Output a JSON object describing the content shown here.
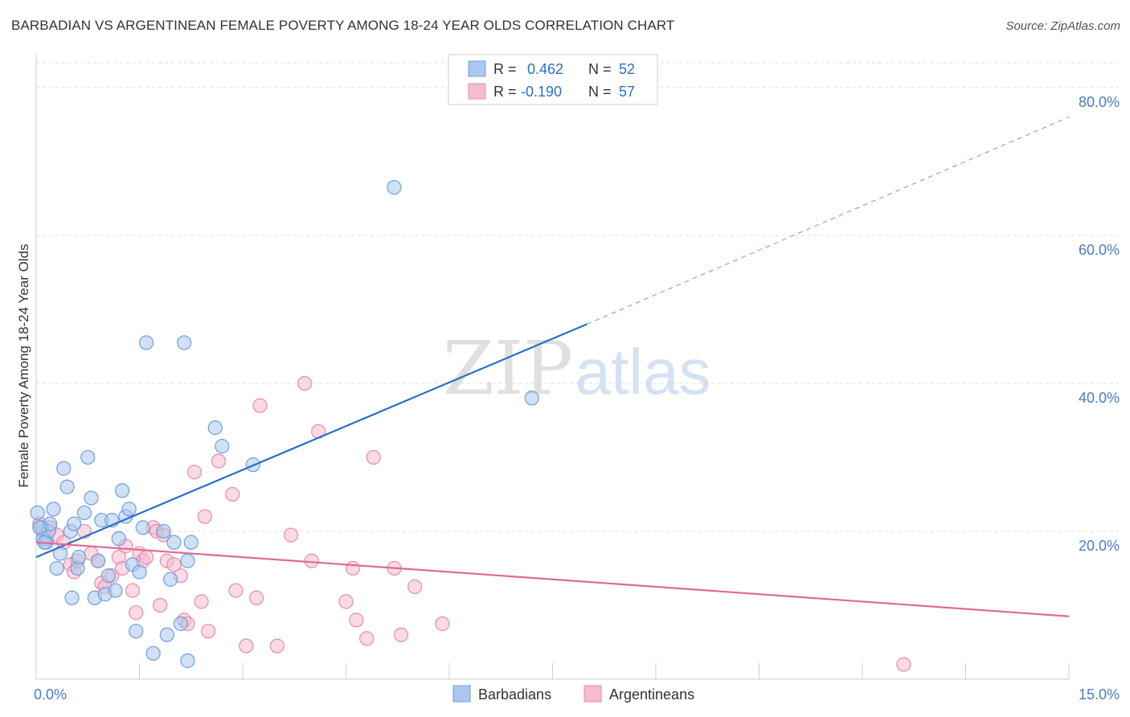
{
  "title": "BARBADIAN VS ARGENTINEAN FEMALE POVERTY AMONG 18-24 YEAR OLDS CORRELATION CHART",
  "source": "Source: ZipAtlas.com",
  "watermark": {
    "zip": "ZIP",
    "atlas": "atlas"
  },
  "colors": {
    "barbadians_fill": "#aac8ef",
    "barbadians_stroke": "#6f9fd8",
    "barbadians_line": "#2870c8",
    "argentineans_fill": "#f6bcd0",
    "argentineans_stroke": "#e88aaa",
    "argentineans_line": "#e06994",
    "tick_text": "#4a7cc4",
    "grid": "#dddddd"
  },
  "legend": {
    "rows": [
      {
        "r_label": "R =",
        "r_value": "0.462",
        "n_label": "N =",
        "n_value": "52"
      },
      {
        "r_label": "R =",
        "r_value": "-0.190",
        "n_label": "N =",
        "n_value": "57"
      }
    ]
  },
  "chart_data": {
    "type": "scatter",
    "title": "BARBADIAN VS ARGENTINEAN FEMALE POVERTY AMONG 18-24 YEAR OLDS CORRELATION CHART",
    "xlabel": "",
    "ylabel": "Female Poverty Among 18-24 Year Olds",
    "xlim": [
      0,
      15
    ],
    "ylim": [
      0,
      84
    ],
    "x_tick_labels": [
      {
        "value": 0,
        "label": "0.0%"
      },
      {
        "value": 15,
        "label": "15.0%"
      }
    ],
    "y_tick_labels": [
      {
        "value": 20,
        "label": "20.0%"
      },
      {
        "value": 40,
        "label": "40.0%"
      },
      {
        "value": 60,
        "label": "60.0%"
      },
      {
        "value": 80,
        "label": "80.0%"
      }
    ],
    "grid": true,
    "legend_position": "bottom-center",
    "series": [
      {
        "name": "Barbadians",
        "points": [
          [
            0.02,
            22.5
          ],
          [
            0.08,
            20.5
          ],
          [
            0.1,
            19.0
          ],
          [
            0.15,
            18.5
          ],
          [
            0.18,
            20.0
          ],
          [
            0.2,
            21.0
          ],
          [
            0.25,
            23.0
          ],
          [
            0.3,
            15.0
          ],
          [
            0.35,
            17.0
          ],
          [
            0.4,
            28.5
          ],
          [
            0.45,
            26.0
          ],
          [
            0.5,
            20.0
          ],
          [
            0.52,
            11.0
          ],
          [
            0.6,
            15.0
          ],
          [
            0.62,
            16.5
          ],
          [
            0.7,
            22.5
          ],
          [
            0.75,
            30.0
          ],
          [
            0.8,
            24.5
          ],
          [
            0.85,
            11.0
          ],
          [
            0.9,
            16.0
          ],
          [
            0.95,
            21.5
          ],
          [
            1.0,
            11.5
          ],
          [
            1.05,
            14.0
          ],
          [
            1.1,
            21.5
          ],
          [
            1.15,
            12.0
          ],
          [
            1.2,
            19.0
          ],
          [
            1.25,
            25.5
          ],
          [
            1.3,
            22.0
          ],
          [
            1.35,
            23.0
          ],
          [
            1.4,
            15.5
          ],
          [
            1.45,
            6.5
          ],
          [
            1.5,
            14.5
          ],
          [
            1.55,
            20.5
          ],
          [
            1.6,
            45.5
          ],
          [
            1.7,
            3.5
          ],
          [
            1.85,
            20.0
          ],
          [
            1.9,
            6.0
          ],
          [
            1.95,
            13.5
          ],
          [
            2.0,
            18.5
          ],
          [
            2.1,
            7.5
          ],
          [
            2.15,
            45.5
          ],
          [
            2.2,
            16.0
          ],
          [
            2.25,
            18.5
          ],
          [
            2.2,
            2.5
          ],
          [
            2.6,
            34.0
          ],
          [
            2.7,
            31.5
          ],
          [
            3.15,
            29.0
          ],
          [
            5.2,
            66.5
          ],
          [
            7.2,
            38.0
          ],
          [
            0.05,
            20.5
          ],
          [
            0.12,
            18.5
          ],
          [
            0.55,
            21.0
          ]
        ]
      },
      {
        "name": "Argentineans",
        "points": [
          [
            0.05,
            21.0
          ],
          [
            0.1,
            20.0
          ],
          [
            0.15,
            19.0
          ],
          [
            0.2,
            20.5
          ],
          [
            0.3,
            19.5
          ],
          [
            0.4,
            18.5
          ],
          [
            0.5,
            15.5
          ],
          [
            0.55,
            14.5
          ],
          [
            0.6,
            16.0
          ],
          [
            0.7,
            20.0
          ],
          [
            0.8,
            17.0
          ],
          [
            0.9,
            16.0
          ],
          [
            0.95,
            13.0
          ],
          [
            1.0,
            12.5
          ],
          [
            1.1,
            14.0
          ],
          [
            1.2,
            16.5
          ],
          [
            1.25,
            15.0
          ],
          [
            1.3,
            18.0
          ],
          [
            1.4,
            12.0
          ],
          [
            1.45,
            9.0
          ],
          [
            1.5,
            17.0
          ],
          [
            1.55,
            16.0
          ],
          [
            1.6,
            16.5
          ],
          [
            1.7,
            20.5
          ],
          [
            1.75,
            20.0
          ],
          [
            1.8,
            10.0
          ],
          [
            1.85,
            19.5
          ],
          [
            1.9,
            16.0
          ],
          [
            2.0,
            15.5
          ],
          [
            2.1,
            14.0
          ],
          [
            2.15,
            8.0
          ],
          [
            2.2,
            7.5
          ],
          [
            2.3,
            28.0
          ],
          [
            2.4,
            10.5
          ],
          [
            2.45,
            22.0
          ],
          [
            2.5,
            6.5
          ],
          [
            2.65,
            29.5
          ],
          [
            2.85,
            25.0
          ],
          [
            2.9,
            12.0
          ],
          [
            3.05,
            4.5
          ],
          [
            3.2,
            11.0
          ],
          [
            3.25,
            37.0
          ],
          [
            3.5,
            4.5
          ],
          [
            3.7,
            19.5
          ],
          [
            3.9,
            40.0
          ],
          [
            4.0,
            16.0
          ],
          [
            4.1,
            33.5
          ],
          [
            4.5,
            10.5
          ],
          [
            4.6,
            15.0
          ],
          [
            4.65,
            8.0
          ],
          [
            4.8,
            5.5
          ],
          [
            4.9,
            30.0
          ],
          [
            5.2,
            15.0
          ],
          [
            5.3,
            6.0
          ],
          [
            5.5,
            12.5
          ],
          [
            5.9,
            7.5
          ],
          [
            12.6,
            2.0
          ]
        ]
      }
    ],
    "trend_lines": [
      {
        "series": "Barbadians",
        "solid_from": [
          0,
          16.5
        ],
        "solid_to": [
          8.0,
          48.0
        ],
        "dashed_to": [
          15.0,
          76.0
        ]
      },
      {
        "series": "Argentineans",
        "from": [
          0,
          18.5
        ],
        "to": [
          15.0,
          8.5
        ]
      }
    ]
  },
  "bottom_legend": [
    {
      "label": "Barbadians"
    },
    {
      "label": "Argentineans"
    }
  ]
}
